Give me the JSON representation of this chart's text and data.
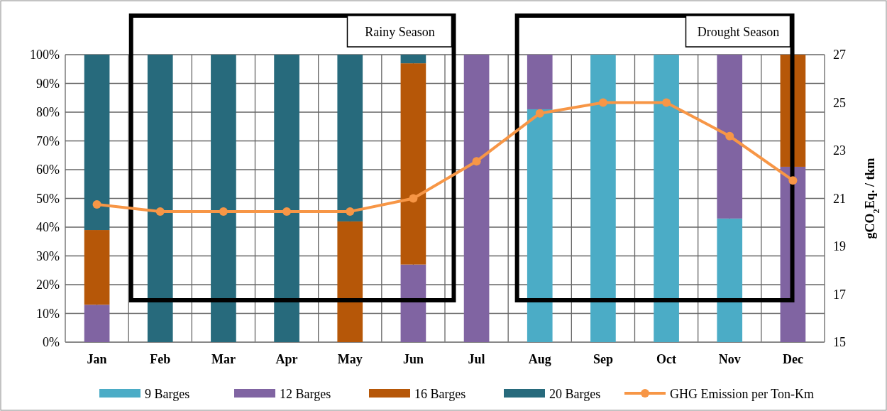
{
  "chart_data": {
    "type": "bar",
    "stacked": true,
    "categories": [
      "Jan",
      "Feb",
      "Mar",
      "Apr",
      "May",
      "Jun",
      "Jul",
      "Aug",
      "Sep",
      "Oct",
      "Nov",
      "Dec"
    ],
    "series": [
      {
        "name": "9 Barges",
        "color": "#4bacc6",
        "values": [
          0,
          0,
          0,
          0,
          0,
          0,
          0,
          81,
          100,
          100,
          43,
          0
        ]
      },
      {
        "name": "12 Barges",
        "color": "#8064a2",
        "values": [
          13,
          0,
          0,
          0,
          0,
          27,
          100,
          19,
          0,
          0,
          57,
          61
        ]
      },
      {
        "name": "16 Barges",
        "color": "#b65708",
        "values": [
          26,
          0,
          0,
          0,
          42,
          70,
          0,
          0,
          0,
          0,
          0,
          39
        ]
      },
      {
        "name": "20 Barges",
        "color": "#276a7c",
        "values": [
          61,
          100,
          100,
          100,
          58,
          3,
          0,
          0,
          0,
          0,
          0,
          0
        ]
      },
      {
        "name": "GHG Emission per Ton-Km",
        "type": "line",
        "axis": "y2",
        "color": "#f79646",
        "values": [
          20.75,
          20.45,
          20.45,
          20.45,
          20.45,
          21.0,
          22.55,
          24.55,
          25.0,
          25.0,
          23.6,
          21.75
        ]
      }
    ],
    "ylim": [
      0,
      100
    ],
    "yticks": [
      {
        "value": 0,
        "label": "0%"
      },
      {
        "value": 10,
        "label": "10%"
      },
      {
        "value": 20,
        "label": "20%"
      },
      {
        "value": 30,
        "label": "30%"
      },
      {
        "value": 40,
        "label": "40%"
      },
      {
        "value": 50,
        "label": "50%"
      },
      {
        "value": 60,
        "label": "60%"
      },
      {
        "value": 70,
        "label": "70%"
      },
      {
        "value": 80,
        "label": "80%"
      },
      {
        "value": 90,
        "label": "90%"
      },
      {
        "value": 100,
        "label": "100%"
      }
    ],
    "y2lim": [
      15,
      27
    ],
    "y2ticks": [
      15,
      17,
      19,
      21,
      23,
      25,
      27
    ],
    "y2label": "gCO$_{2}$Eq. / tkm",
    "annotations": [
      "Rainy Season",
      "Drought Season"
    ],
    "grid": true,
    "legend": "bottom",
    "marker": "circle"
  }
}
